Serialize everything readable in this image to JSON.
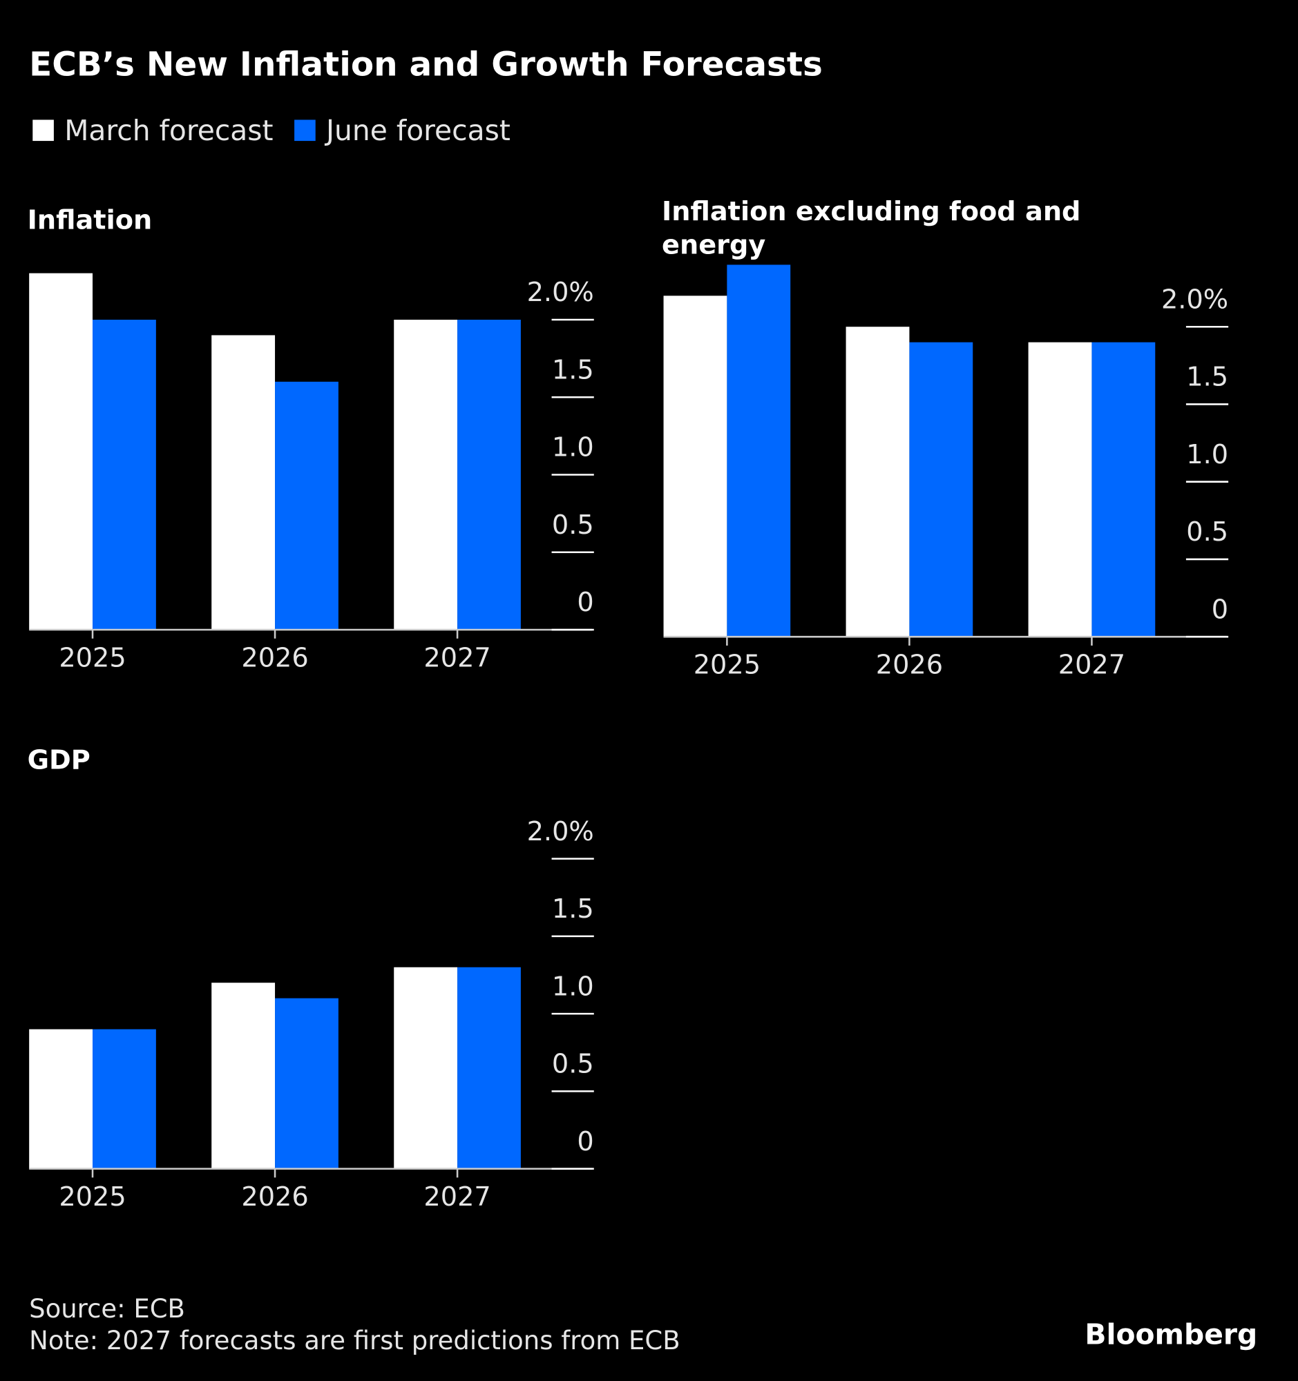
{
  "title": "ECB’s New Inflation and Growth Forecasts",
  "legend": [
    {
      "name": "March forecast",
      "color": "#ffffff"
    },
    {
      "name": "June forecast",
      "color": "#0068ff"
    }
  ],
  "chart_data": [
    {
      "type": "bar",
      "title": "Inflation",
      "categories": [
        "2025",
        "2026",
        "2027"
      ],
      "series": [
        {
          "values": [
            2.3,
            1.9,
            2.0
          ]
        },
        {
          "values": [
            2.0,
            1.6,
            2.0
          ]
        }
      ],
      "ylim": [
        0,
        2.4
      ],
      "yticks": [
        0,
        0.5,
        {
          "value": 1,
          "label": "1.0"
        },
        1.5,
        {
          "value": 2,
          "label": "2.0%"
        }
      ]
    },
    {
      "type": "bar",
      "title": "Inflation excluding food and energy",
      "categories": [
        "2025",
        "2026",
        "2027"
      ],
      "series": [
        {
          "values": [
            2.2,
            2.0,
            1.9
          ]
        },
        {
          "values": [
            2.4,
            1.9,
            1.9
          ]
        }
      ],
      "ylim": [
        0,
        2.4
      ],
      "yticks": [
        0,
        0.5,
        {
          "value": 1,
          "label": "1.0"
        },
        1.5,
        {
          "value": 2,
          "label": "2.0%"
        }
      ]
    },
    {
      "type": "bar",
      "title": "GDP",
      "categories": [
        "2025",
        "2026",
        "2027"
      ],
      "series": [
        {
          "values": [
            0.9,
            1.2,
            1.3
          ]
        },
        {
          "values": [
            0.9,
            1.1,
            1.3
          ]
        }
      ],
      "ylim": [
        0,
        2.4
      ],
      "yticks": [
        0,
        0.5,
        {
          "value": 1,
          "label": "1.0"
        },
        1.5,
        {
          "value": 2,
          "label": "2.0%"
        }
      ]
    }
  ],
  "source": "Source: ECB",
  "note": "Note: 2027 forecasts are first predictions from ECB",
  "brand": "Bloomberg"
}
